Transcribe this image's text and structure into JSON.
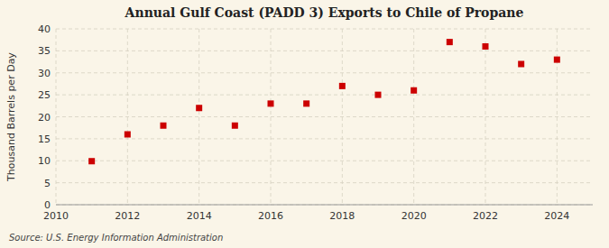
{
  "chart_data": {
    "type": "scatter",
    "title": "Annual Gulf Coast (PADD 3) Exports to Chile of Propane",
    "ylabel": "Thousand Barrels per Day",
    "source": "Source: U.S. Energy Information Administration",
    "x": [
      2011,
      2012,
      2013,
      2014,
      2015,
      2016,
      2017,
      2018,
      2019,
      2020,
      2021,
      2022,
      2023,
      2024
    ],
    "values": [
      9.9,
      16.0,
      18.0,
      22.0,
      18.0,
      23.0,
      23.0,
      27.0,
      25.0,
      26.0,
      37.0,
      36.0,
      32.0,
      33.0
    ],
    "color": "#cc0000",
    "marker": "square",
    "xlim": [
      2010,
      2025
    ],
    "ylim": [
      0,
      40
    ],
    "xticks": [
      2010,
      2012,
      2014,
      2016,
      2018,
      2020,
      2022,
      2024
    ],
    "yticks": [
      0,
      5,
      10,
      15,
      20,
      25,
      30,
      35,
      40
    ],
    "grid": true
  }
}
